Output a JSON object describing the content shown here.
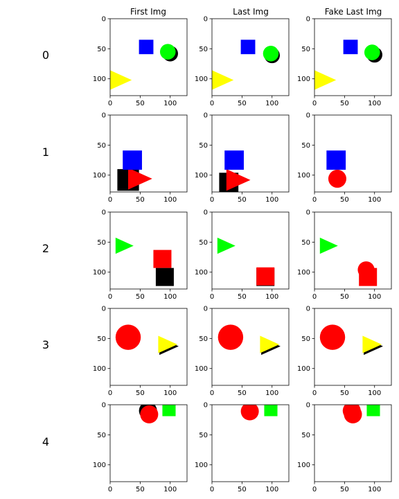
{
  "columns": [
    "First Img",
    "Last Img",
    "Fake Last Img"
  ],
  "rows": [
    "0",
    "1",
    "2",
    "3",
    "4"
  ],
  "axes": {
    "x_ticks": [
      "0",
      "50",
      "100"
    ],
    "y_ticks": [
      "0",
      "50",
      "100"
    ],
    "x_tick_values": [
      0,
      50,
      100
    ],
    "y_tick_values": [
      0,
      50,
      100
    ],
    "extent": [
      0,
      128
    ]
  },
  "colors": {
    "blue": "#0000ff",
    "green": "#00ff00",
    "yellow": "#ffff00",
    "red": "#ff0000",
    "black": "#000000",
    "background": "#ffffff"
  },
  "scenes": [
    [
      [
        {
          "kind": "triangle",
          "color": "yellow",
          "cx": 16,
          "cy": 102,
          "size": 40
        },
        {
          "kind": "square",
          "color": "blue",
          "cx": 60,
          "cy": 47,
          "size": 24
        },
        {
          "kind": "circle",
          "color": "black",
          "cx": 100,
          "cy": 58,
          "size": 26
        },
        {
          "kind": "circle",
          "color": "green",
          "cx": 96,
          "cy": 55,
          "size": 26
        }
      ],
      [
        {
          "kind": "triangle",
          "color": "yellow",
          "cx": 16,
          "cy": 102,
          "size": 40
        },
        {
          "kind": "square",
          "color": "blue",
          "cx": 60,
          "cy": 47,
          "size": 24
        },
        {
          "kind": "circle",
          "color": "black",
          "cx": 100,
          "cy": 61,
          "size": 26
        },
        {
          "kind": "circle",
          "color": "green",
          "cx": 98,
          "cy": 58,
          "size": 26
        }
      ],
      [
        {
          "kind": "triangle",
          "color": "yellow",
          "cx": 16,
          "cy": 102,
          "size": 40
        },
        {
          "kind": "square",
          "color": "blue",
          "cx": 60,
          "cy": 47,
          "size": 24
        },
        {
          "kind": "circle",
          "color": "black",
          "cx": 100,
          "cy": 60,
          "size": 26
        },
        {
          "kind": "circle",
          "color": "green",
          "cx": 96,
          "cy": 56,
          "size": 26
        }
      ]
    ],
    [
      [
        {
          "kind": "square",
          "color": "black",
          "cx": 30,
          "cy": 108,
          "size": 36
        },
        {
          "kind": "triangle",
          "color": "red",
          "cx": 50,
          "cy": 106,
          "size": 40
        },
        {
          "kind": "square",
          "color": "blue",
          "cx": 37,
          "cy": 75,
          "size": 32
        }
      ],
      [
        {
          "kind": "square",
          "color": "black",
          "cx": 28,
          "cy": 112,
          "size": 32
        },
        {
          "kind": "triangle",
          "color": "red",
          "cx": 44,
          "cy": 108,
          "size": 40
        },
        {
          "kind": "square",
          "color": "blue",
          "cx": 37,
          "cy": 75,
          "size": 32
        }
      ],
      [
        {
          "kind": "circle",
          "color": "red",
          "cx": 38,
          "cy": 106,
          "size": 30
        },
        {
          "kind": "square",
          "color": "blue",
          "cx": 36,
          "cy": 75,
          "size": 32
        }
      ]
    ],
    [
      [
        {
          "kind": "triangle",
          "color": "green",
          "cx": 24,
          "cy": 56,
          "size": 30
        },
        {
          "kind": "square",
          "color": "red",
          "cx": 87,
          "cy": 78,
          "size": 30
        },
        {
          "kind": "square",
          "color": "black",
          "cx": 91,
          "cy": 108,
          "size": 30
        }
      ],
      [
        {
          "kind": "triangle",
          "color": "green",
          "cx": 24,
          "cy": 56,
          "size": 30
        },
        {
          "kind": "square",
          "color": "black",
          "cx": 89,
          "cy": 108,
          "size": 30
        },
        {
          "kind": "square",
          "color": "red",
          "cx": 89,
          "cy": 107,
          "size": 30
        }
      ],
      [
        {
          "kind": "triangle",
          "color": "green",
          "cx": 24,
          "cy": 56,
          "size": 30
        },
        {
          "kind": "circle",
          "color": "red",
          "cx": 86,
          "cy": 96,
          "size": 28
        },
        {
          "kind": "square",
          "color": "red",
          "cx": 89,
          "cy": 108,
          "size": 30
        }
      ]
    ],
    [
      [
        {
          "kind": "circle",
          "color": "red",
          "cx": 30,
          "cy": 48,
          "size": 42
        },
        {
          "kind": "triangle",
          "color": "black",
          "cx": 98,
          "cy": 63,
          "size": 32
        },
        {
          "kind": "triangle",
          "color": "yellow",
          "cx": 96,
          "cy": 60,
          "size": 32
        }
      ],
      [
        {
          "kind": "circle",
          "color": "red",
          "cx": 31,
          "cy": 48,
          "size": 42
        },
        {
          "kind": "triangle",
          "color": "black",
          "cx": 98,
          "cy": 63,
          "size": 32
        },
        {
          "kind": "triangle",
          "color": "yellow",
          "cx": 96,
          "cy": 60,
          "size": 32
        }
      ],
      [
        {
          "kind": "circle",
          "color": "red",
          "cx": 30,
          "cy": 48,
          "size": 42
        },
        {
          "kind": "triangle",
          "color": "black",
          "cx": 98,
          "cy": 63,
          "size": 32
        },
        {
          "kind": "triangle",
          "color": "yellow",
          "cx": 96,
          "cy": 60,
          "size": 32
        }
      ]
    ],
    [
      [
        {
          "kind": "circle",
          "color": "black",
          "cx": 63,
          "cy": 10,
          "size": 30
        },
        {
          "kind": "circle",
          "color": "red",
          "cx": 65,
          "cy": 16,
          "size": 30
        },
        {
          "kind": "square",
          "color": "green",
          "cx": 98,
          "cy": 8,
          "size": 22
        }
      ],
      [
        {
          "kind": "circle",
          "color": "red",
          "cx": 63,
          "cy": 11,
          "size": 30
        },
        {
          "kind": "square",
          "color": "green",
          "cx": 98,
          "cy": 8,
          "size": 22
        }
      ],
      [
        {
          "kind": "circle",
          "color": "red",
          "cx": 62,
          "cy": 10,
          "size": 30
        },
        {
          "kind": "circle",
          "color": "red",
          "cx": 64,
          "cy": 16,
          "size": 30
        },
        {
          "kind": "square",
          "color": "green",
          "cx": 98,
          "cy": 8,
          "size": 22
        }
      ]
    ]
  ]
}
